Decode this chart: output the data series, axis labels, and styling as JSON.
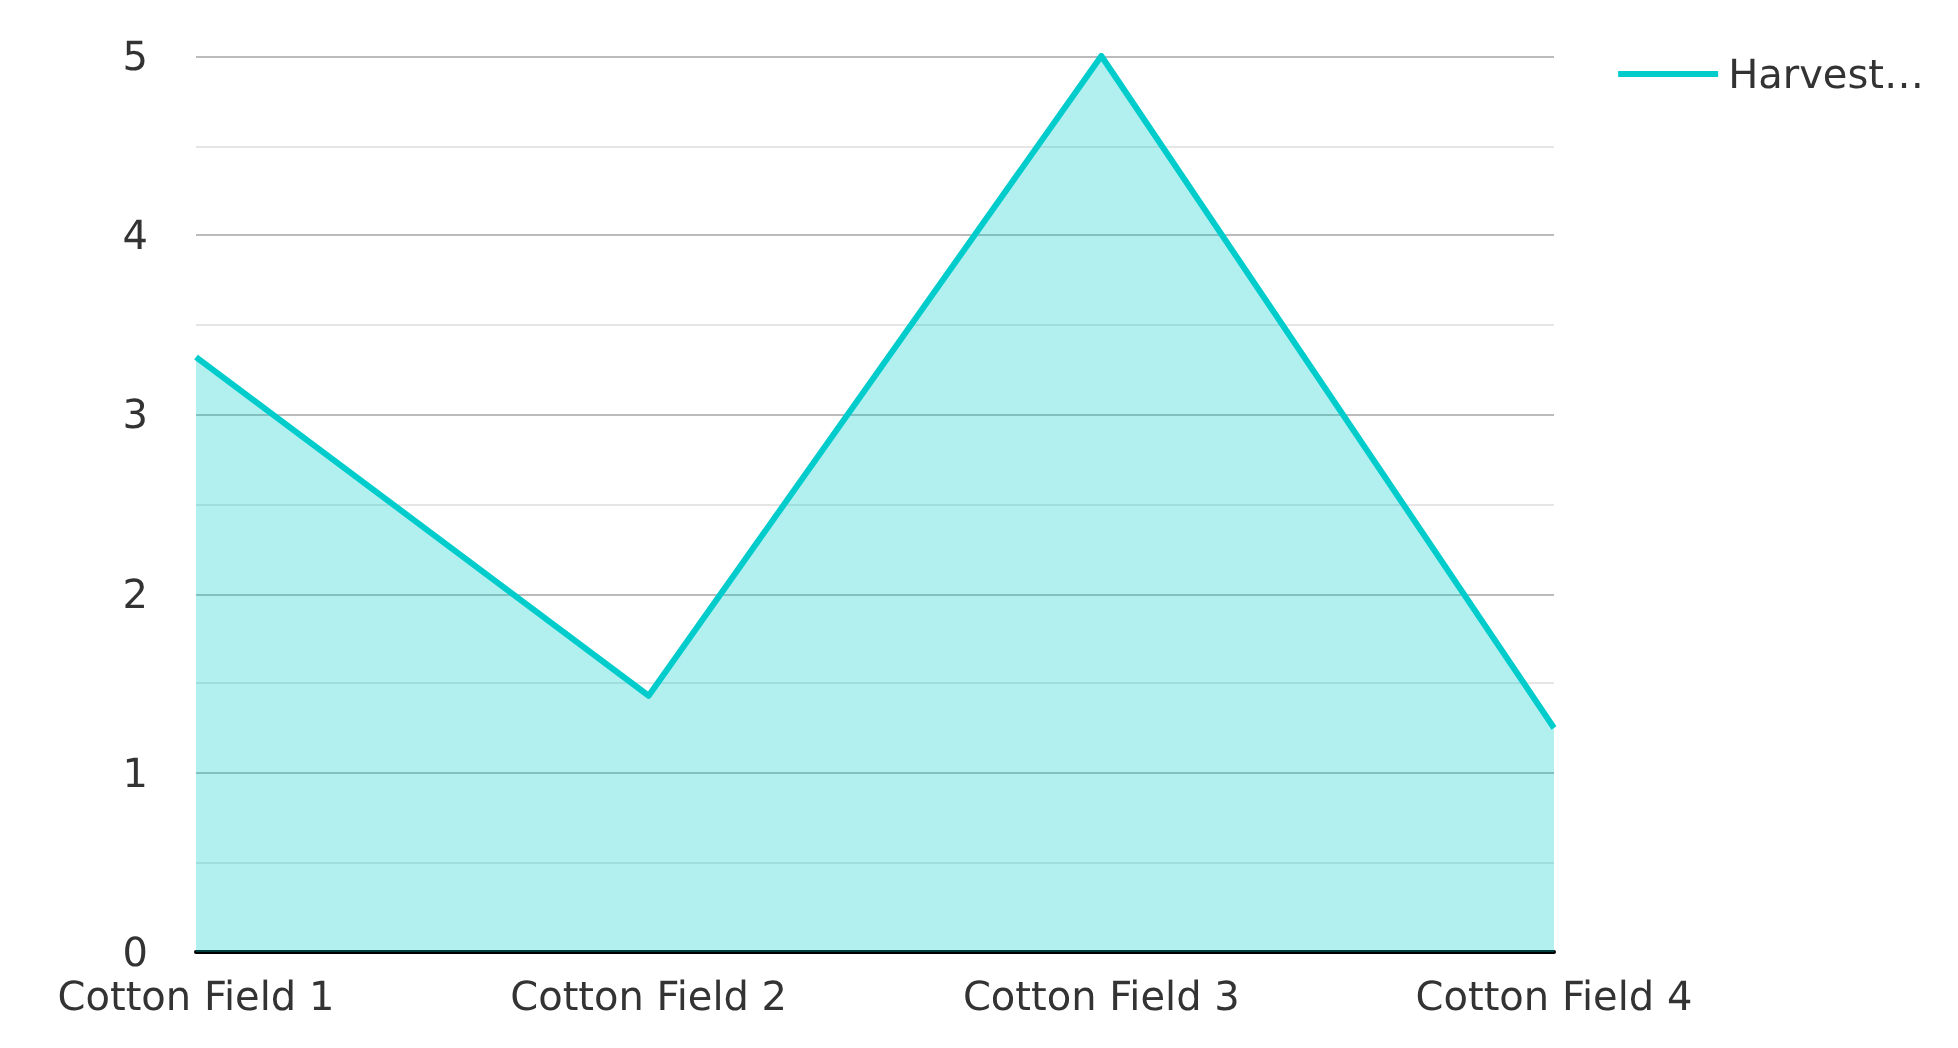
{
  "chart_data": {
    "type": "area",
    "categories": [
      "Cotton Field 1",
      "Cotton Field 2",
      "Cotton Field 3",
      "Cotton Field 4"
    ],
    "series": [
      {
        "name": "Harvest…",
        "color": "#00cccc",
        "values": [
          3.32,
          1.43,
          5,
          1.25
        ]
      }
    ],
    "ylim": [
      0,
      5
    ],
    "yticks": [
      0,
      1,
      2,
      3,
      4,
      5
    ],
    "grid": "y",
    "legend": "top right",
    "marker": "none"
  }
}
